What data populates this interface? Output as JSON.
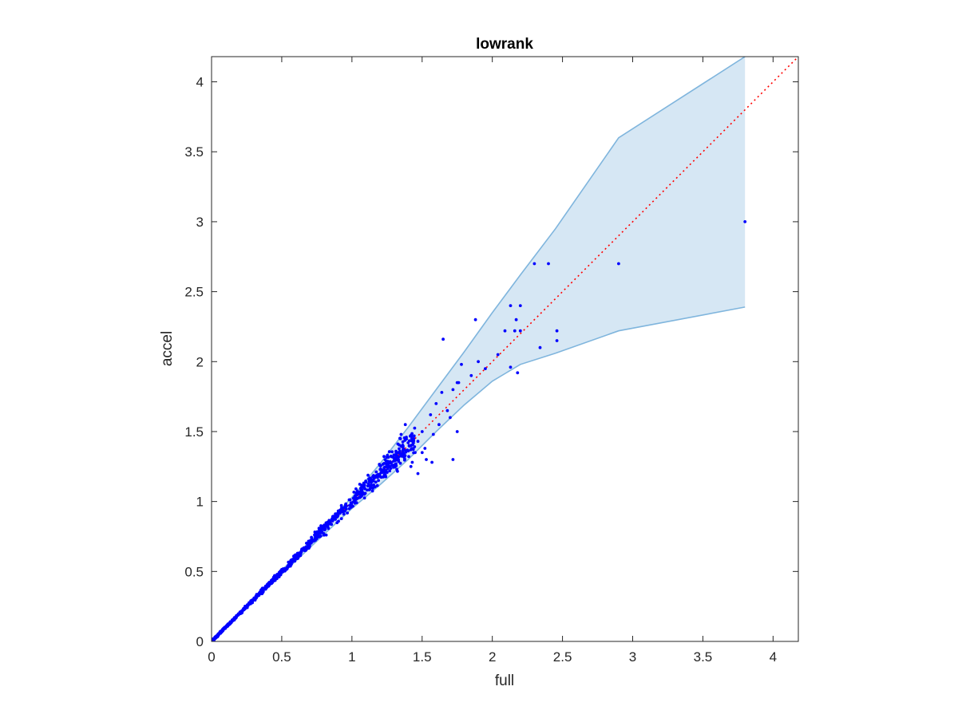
{
  "chart_data": {
    "type": "scatter",
    "title": "lowrank",
    "xlabel": "full",
    "ylabel": "accel",
    "xlim": [
      0,
      4.18
    ],
    "ylim": [
      0,
      4.18
    ],
    "xticks": [
      0,
      0.5,
      1,
      1.5,
      2,
      2.5,
      3,
      3.5,
      4
    ],
    "yticks": [
      0,
      0.5,
      1,
      1.5,
      2,
      2.5,
      3,
      3.5,
      4
    ],
    "xtick_labels": [
      "0",
      "0.5",
      "1",
      "1.5",
      "2",
      "2.5",
      "3",
      "3.5",
      "4"
    ],
    "ytick_labels": [
      "0",
      "0.5",
      "1",
      "1.5",
      "2",
      "2.5",
      "3",
      "3.5",
      "4"
    ],
    "grid": false,
    "colors": {
      "points": "#0000ff",
      "band_fill": "#d6e7f4",
      "band_edge": "#7fb5dd",
      "reference_line": "#ff0000",
      "axes": "#262626"
    },
    "reference_line": {
      "x": [
        0,
        4.18
      ],
      "y": [
        0,
        4.18
      ],
      "style": "dotted"
    },
    "band": {
      "x": [
        0,
        0.2,
        0.4,
        0.6,
        0.8,
        1.0,
        1.2,
        1.4,
        1.6,
        1.8,
        2.0,
        2.2,
        2.45,
        2.9,
        3.8
      ],
      "upper": [
        0,
        0.2,
        0.405,
        0.61,
        0.82,
        1.03,
        1.27,
        1.53,
        1.8,
        2.07,
        2.35,
        2.62,
        2.95,
        3.6,
        4.18
      ],
      "lower": [
        0,
        0.19,
        0.385,
        0.575,
        0.765,
        0.95,
        1.12,
        1.3,
        1.5,
        1.69,
        1.86,
        1.98,
        2.06,
        2.22,
        2.39
      ]
    },
    "outlier_points": {
      "x": [
        3.8,
        2.9,
        2.3,
        2.4,
        2.46,
        2.46,
        2.34,
        2.2,
        2.17,
        2.16,
        2.13,
        2.09,
        2.2,
        2.13,
        2.18,
        2.04,
        1.9,
        1.88,
        1.95,
        1.85,
        1.75,
        1.78,
        1.65,
        1.72,
        1.68,
        1.64,
        1.7,
        1.76,
        1.6,
        1.56,
        1.62,
        1.58,
        1.5,
        1.47,
        1.52,
        1.45,
        1.53,
        1.57,
        1.72,
        1.75,
        1.43,
        1.4,
        1.38,
        1.35,
        1.42,
        1.47,
        1.5
      ],
      "y": [
        3.0,
        2.7,
        2.7,
        2.7,
        2.22,
        2.15,
        2.1,
        2.4,
        2.3,
        2.22,
        2.4,
        2.22,
        2.22,
        1.96,
        1.92,
        2.05,
        2.0,
        2.3,
        1.95,
        1.9,
        1.85,
        1.98,
        2.16,
        1.8,
        1.65,
        1.78,
        1.6,
        1.85,
        1.7,
        1.62,
        1.55,
        1.48,
        1.5,
        1.43,
        1.38,
        1.35,
        1.3,
        1.28,
        1.3,
        1.5,
        1.28,
        1.42,
        1.55,
        1.48,
        1.25,
        1.2,
        1.35
      ]
    },
    "scatter_cloud": {
      "description_free_params": true,
      "count": 900,
      "x_max": 1.45,
      "seed": 7
    }
  }
}
